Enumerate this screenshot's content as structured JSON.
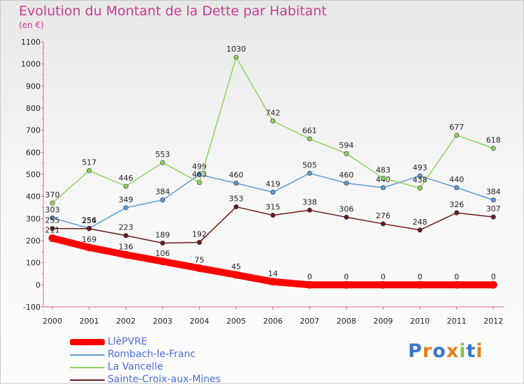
{
  "header": {
    "title": "Evolution du Montant de la Dette par Habitant",
    "subtitle": "(en €)"
  },
  "brand": {
    "text": "Proxiti",
    "colors": [
      "#3a78c8",
      "#e8801a",
      "#3a78c8",
      "#e8801a",
      "#8cc63e",
      "#3a78c8",
      "#e8801a"
    ]
  },
  "chart_data": {
    "type": "line",
    "title": "Evolution du Montant de la Dette par Habitant",
    "subtitle": "(en €)",
    "x": [
      "2000",
      "2001",
      "2002",
      "2003",
      "2004",
      "2005",
      "2006",
      "2007",
      "2008",
      "2009",
      "2010",
      "2011",
      "2012"
    ],
    "ylim": [
      -100,
      1100
    ],
    "yticks": [
      -100,
      0,
      100,
      200,
      300,
      400,
      500,
      600,
      700,
      800,
      900,
      1000,
      1100
    ],
    "grid": false,
    "legend_position": "bottom-left",
    "series": [
      {
        "name": "LlèPVRE",
        "color": "#ff0000",
        "bold": true,
        "values": [
          211,
          169,
          136,
          106,
          75,
          45,
          14,
          0,
          0,
          0,
          0,
          0,
          0
        ]
      },
      {
        "name": "Rombach-le-Franc",
        "color": "#5b9bd5",
        "bold": false,
        "values": [
          303,
          256,
          349,
          384,
          499,
          460,
          419,
          505,
          460,
          440,
          493,
          440,
          384
        ]
      },
      {
        "name": "La Vancelle",
        "color": "#8dd35f",
        "bold": false,
        "values": [
          370,
          517,
          446,
          553,
          463,
          1030,
          742,
          661,
          594,
          483,
          438,
          677,
          618
        ]
      },
      {
        "name": "Sainte-Croix-aux-Mines",
        "color": "#6b1a1a",
        "bold": false,
        "values": [
          255,
          254,
          223,
          189,
          192,
          353,
          315,
          338,
          306,
          276,
          248,
          326,
          307
        ]
      }
    ]
  }
}
